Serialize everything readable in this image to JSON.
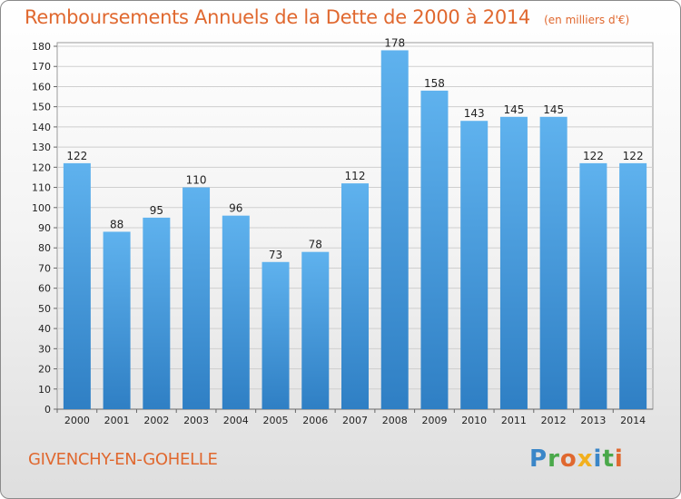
{
  "chart_data": {
    "type": "bar",
    "title": "Remboursements Annuels de la Dette de 2000 à 2014",
    "unit_note": "(en milliers d'€)",
    "categories": [
      "2000",
      "2001",
      "2002",
      "2003",
      "2004",
      "2005",
      "2006",
      "2007",
      "2008",
      "2009",
      "2010",
      "2011",
      "2012",
      "2013",
      "2014"
    ],
    "values": [
      122,
      88,
      95,
      110,
      96,
      73,
      78,
      112,
      178,
      158,
      143,
      145,
      145,
      122,
      122
    ],
    "ylim": [
      0,
      180
    ],
    "yticks": [
      0,
      10,
      20,
      30,
      40,
      50,
      60,
      70,
      80,
      90,
      100,
      110,
      120,
      130,
      140,
      150,
      160,
      170,
      180
    ],
    "grid": true,
    "bar_color": "#4a9be0",
    "title_color": "#e0682f"
  },
  "footer": {
    "city": "GIVENCHY-EN-GOHELLE",
    "logo_text": "Proxiti"
  }
}
